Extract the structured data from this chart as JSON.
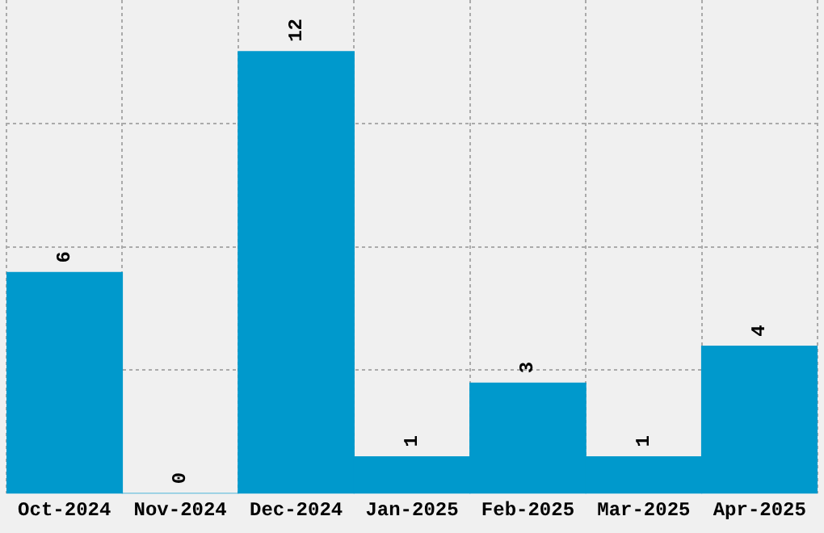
{
  "chart_data": {
    "type": "bar",
    "categories": [
      "Oct-2024",
      "Nov-2024",
      "Dec-2024",
      "Jan-2025",
      "Feb-2025",
      "Mar-2025",
      "Apr-2025"
    ],
    "values": [
      6,
      0,
      12,
      1,
      3,
      1,
      4
    ],
    "color": "#0099cc",
    "ylim": [
      0,
      13.4
    ],
    "yticks": [
      {
        "value": 3.35,
        "label": null
      },
      {
        "value": 6.7,
        "label": null
      },
      {
        "value": 10.05,
        "label": null
      }
    ],
    "grid": true,
    "data_labels": true,
    "tick_labels": "x"
  }
}
